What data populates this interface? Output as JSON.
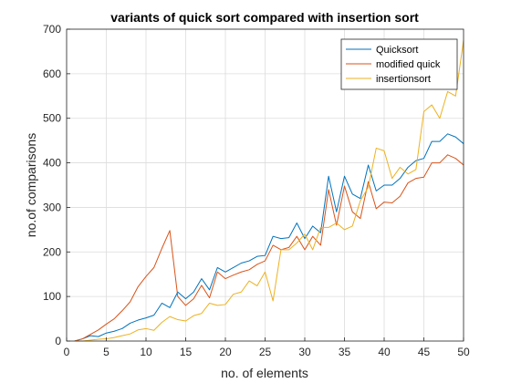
{
  "chart_data": {
    "type": "line",
    "title": "variants of quick sort compared with insertion sort",
    "xlabel": "no. of elements",
    "ylabel": "no.of comparisons",
    "xlim": [
      0,
      50
    ],
    "ylim": [
      0,
      700
    ],
    "xticks": [
      0,
      5,
      10,
      15,
      20,
      25,
      30,
      35,
      40,
      45,
      50
    ],
    "yticks": [
      0,
      100,
      200,
      300,
      400,
      500,
      600,
      700
    ],
    "grid": true,
    "legend_position": "top-right",
    "x": [
      1,
      2,
      3,
      4,
      5,
      6,
      7,
      8,
      9,
      10,
      11,
      12,
      13,
      14,
      15,
      16,
      17,
      18,
      19,
      20,
      21,
      22,
      23,
      24,
      25,
      26,
      27,
      28,
      29,
      30,
      31,
      32,
      33,
      34,
      35,
      36,
      37,
      38,
      39,
      40,
      41,
      42,
      43,
      44,
      45,
      46,
      47,
      48,
      49,
      50
    ],
    "series": [
      {
        "name": "Quicksort",
        "color": "#0072bd",
        "values": [
          0,
          5,
          12,
          10,
          18,
          22,
          28,
          40,
          47,
          52,
          58,
          85,
          75,
          110,
          95,
          110,
          140,
          115,
          165,
          155,
          165,
          175,
          180,
          190,
          192,
          235,
          230,
          232,
          265,
          230,
          258,
          243,
          370,
          290,
          370,
          330,
          320,
          395,
          337,
          350,
          350,
          365,
          390,
          405,
          410,
          448,
          448,
          465,
          458,
          443
        ]
      },
      {
        "name": "modified quick",
        "color": "#d95319",
        "values": [
          0,
          5,
          15,
          25,
          38,
          50,
          68,
          88,
          122,
          145,
          165,
          208,
          248,
          100,
          80,
          95,
          125,
          97,
          155,
          140,
          148,
          155,
          160,
          172,
          180,
          215,
          205,
          210,
          235,
          205,
          235,
          215,
          340,
          260,
          348,
          290,
          275,
          358,
          297,
          312,
          310,
          325,
          355,
          365,
          368,
          400,
          400,
          418,
          410,
          395
        ]
      },
      {
        "name": "insertionsort",
        "color": "#edb120",
        "values": [
          0,
          0,
          2,
          4,
          5,
          8,
          12,
          16,
          25,
          28,
          24,
          42,
          55,
          48,
          45,
          57,
          62,
          85,
          80,
          82,
          105,
          110,
          135,
          124,
          155,
          90,
          205,
          205,
          220,
          240,
          205,
          255,
          255,
          265,
          250,
          258,
          315,
          345,
          433,
          427,
          365,
          390,
          375,
          385,
          515,
          530,
          500,
          560,
          550,
          675
        ]
      }
    ]
  }
}
